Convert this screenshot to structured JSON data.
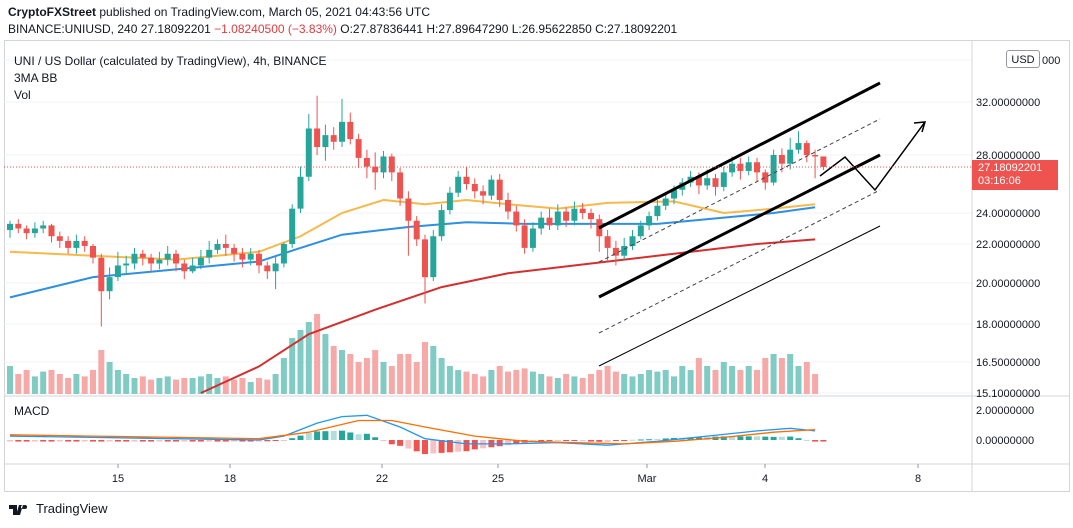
{
  "header": {
    "publisher": "CryptoFXStreet",
    "published_text": "published on TradingView.com, March 05, 2021 04:43:56 UTC",
    "symbol_line": "BINANCE:UNIUSD, 240",
    "last": "27.18092201",
    "change": "−1.08240500 (−3.83%)",
    "ohlc": "O:27.87836441 H:27.89647290 L:26.95622850 C:27.18092201"
  },
  "legend": {
    "title": "UNI / US Dollar (calculated by TradingView), 4h, BINANCE",
    "ind1": "3MA BB",
    "ind2": "Vol",
    "macd": "MACD"
  },
  "price_axis": {
    "currency": "USD",
    "current_price": "27.18092201",
    "countdown": "03:16:06",
    "ticks": [
      "36.00000000",
      "32.00000000",
      "28.00000000",
      "24.00000000",
      "22.00000000",
      "20.00000000",
      "18.00000000",
      "16.50000000",
      "15.10000000"
    ],
    "macd_ticks": [
      "2.00000000",
      "0.00000000"
    ]
  },
  "time_axis": [
    "15",
    "18",
    "22",
    "25",
    "Mar",
    "4",
    "8"
  ],
  "footer": {
    "brand": "TradingView"
  },
  "colors": {
    "up": "#26a69a",
    "down": "#ef5350",
    "ma_fast": "#f5b94c",
    "ma_mid": "#2f8fe0",
    "ma_slow": "#d32f2f",
    "macd": "#2196f3",
    "signal": "#ff6d00"
  },
  "chart_data": {
    "type": "candlestick",
    "interval": "4h",
    "price_range": [
      15.1,
      37.0
    ],
    "candles": [
      [
        22.9,
        23.3,
        23.5,
        22.4
      ],
      [
        23.3,
        23.0,
        23.6,
        22.7
      ],
      [
        23.0,
        22.7,
        23.2,
        22.3
      ],
      [
        22.7,
        23.0,
        23.4,
        22.4
      ],
      [
        23.0,
        23.2,
        23.5,
        22.7
      ],
      [
        23.2,
        22.5,
        23.3,
        22.1
      ],
      [
        22.5,
        22.2,
        22.8,
        21.8
      ],
      [
        22.2,
        21.8,
        22.5,
        21.5
      ],
      [
        21.8,
        22.2,
        22.6,
        21.5
      ],
      [
        22.2,
        21.9,
        22.5,
        21.6
      ],
      [
        21.9,
        21.3,
        22.0,
        21.0
      ],
      [
        21.3,
        19.6,
        21.5,
        17.9
      ],
      [
        19.6,
        20.3,
        20.8,
        19.2
      ],
      [
        20.3,
        20.9,
        21.6,
        20.1
      ],
      [
        20.9,
        21.0,
        21.4,
        20.5
      ],
      [
        21.0,
        21.5,
        21.8,
        20.7
      ],
      [
        21.5,
        21.3,
        21.7,
        20.9
      ],
      [
        21.3,
        21.0,
        21.5,
        20.6
      ],
      [
        21.0,
        21.2,
        21.6,
        20.7
      ],
      [
        21.2,
        21.5,
        21.9,
        20.9
      ],
      [
        21.5,
        21.0,
        21.7,
        20.6
      ],
      [
        21.0,
        20.6,
        21.2,
        20.2
      ],
      [
        20.6,
        20.9,
        21.3,
        20.5
      ],
      [
        20.9,
        21.3,
        21.7,
        20.7
      ],
      [
        21.3,
        21.7,
        22.2,
        21.0
      ],
      [
        21.7,
        22.0,
        22.3,
        21.5
      ],
      [
        22.0,
        21.8,
        22.6,
        21.4
      ],
      [
        21.8,
        21.5,
        22.0,
        21.1
      ],
      [
        21.5,
        21.2,
        21.8,
        20.8
      ],
      [
        21.2,
        21.5,
        21.8,
        20.9
      ],
      [
        21.5,
        20.9,
        21.7,
        20.5
      ],
      [
        20.9,
        20.6,
        21.1,
        20.2
      ],
      [
        20.6,
        21.0,
        21.4,
        19.7
      ],
      [
        21.0,
        22.0,
        22.1,
        20.8
      ],
      [
        22.0,
        24.3,
        24.6,
        21.8
      ],
      [
        24.3,
        26.5,
        27.2,
        24.0
      ],
      [
        26.5,
        30.0,
        31.1,
        26.2
      ],
      [
        30.0,
        28.6,
        32.6,
        28.0
      ],
      [
        28.6,
        29.5,
        30.3,
        27.6
      ],
      [
        29.5,
        29.0,
        30.1,
        28.4
      ],
      [
        29.0,
        30.5,
        32.3,
        28.6
      ],
      [
        30.5,
        29.2,
        31.2,
        28.8
      ],
      [
        29.2,
        27.8,
        29.6,
        27.1
      ],
      [
        27.8,
        27.2,
        28.4,
        26.4
      ],
      [
        27.2,
        26.8,
        28.2,
        25.6
      ],
      [
        26.8,
        27.9,
        28.3,
        26.4
      ],
      [
        27.9,
        26.8,
        28.1,
        26.2
      ],
      [
        26.8,
        25.0,
        27.1,
        24.5
      ],
      [
        25.0,
        23.5,
        25.5,
        21.4
      ],
      [
        23.5,
        22.3,
        23.8,
        21.9
      ],
      [
        22.3,
        20.3,
        22.6,
        19.0
      ],
      [
        20.3,
        22.5,
        22.9,
        20.1
      ],
      [
        22.5,
        24.2,
        24.6,
        22.2
      ],
      [
        24.2,
        25.4,
        25.8,
        23.9
      ],
      [
        25.4,
        26.5,
        26.9,
        25.1
      ],
      [
        26.5,
        26.0,
        27.2,
        25.6
      ],
      [
        26.0,
        25.5,
        26.4,
        25.0
      ],
      [
        25.5,
        25.2,
        25.9,
        24.6
      ],
      [
        25.2,
        26.3,
        26.6,
        24.9
      ],
      [
        26.3,
        24.9,
        26.7,
        24.4
      ],
      [
        24.9,
        24.1,
        25.4,
        23.6
      ],
      [
        24.1,
        23.2,
        24.5,
        22.8
      ],
      [
        23.2,
        21.8,
        23.6,
        21.5
      ],
      [
        21.8,
        23.0,
        23.4,
        21.6
      ],
      [
        23.0,
        23.7,
        24.1,
        22.6
      ],
      [
        23.7,
        23.2,
        24.3,
        22.9
      ],
      [
        23.2,
        24.1,
        24.6,
        22.9
      ],
      [
        24.1,
        23.5,
        24.4,
        23.1
      ],
      [
        23.5,
        24.3,
        24.8,
        23.2
      ],
      [
        24.3,
        24.0,
        24.7,
        23.6
      ],
      [
        24.0,
        23.6,
        24.3,
        23.0
      ],
      [
        23.6,
        22.5,
        23.9,
        21.6
      ],
      [
        22.5,
        21.8,
        22.9,
        21.1
      ],
      [
        21.8,
        21.4,
        22.2,
        20.9
      ],
      [
        21.4,
        21.9,
        22.4,
        21.2
      ],
      [
        21.9,
        22.5,
        22.9,
        21.7
      ],
      [
        22.5,
        23.2,
        23.5,
        22.3
      ],
      [
        23.2,
        23.8,
        24.1,
        22.9
      ],
      [
        23.8,
        24.5,
        24.9,
        23.5
      ],
      [
        24.5,
        25.0,
        25.4,
        24.2
      ],
      [
        25.0,
        25.6,
        25.9,
        24.6
      ],
      [
        25.6,
        26.1,
        26.4,
        25.2
      ],
      [
        26.1,
        26.5,
        26.9,
        25.8
      ],
      [
        26.5,
        25.9,
        26.8,
        25.3
      ],
      [
        25.9,
        26.4,
        27.0,
        25.6
      ],
      [
        26.4,
        25.8,
        26.7,
        25.2
      ],
      [
        25.8,
        26.8,
        27.2,
        25.5
      ],
      [
        26.8,
        27.4,
        27.9,
        26.5
      ],
      [
        27.4,
        26.9,
        27.8,
        26.3
      ],
      [
        26.9,
        27.5,
        27.9,
        26.6
      ],
      [
        27.5,
        26.8,
        27.8,
        26.2
      ],
      [
        26.8,
        26.1,
        27.0,
        25.6
      ],
      [
        26.1,
        28.0,
        28.4,
        25.9
      ],
      [
        28.0,
        27.4,
        28.5,
        26.8
      ],
      [
        27.4,
        28.4,
        29.3,
        27.0
      ],
      [
        28.4,
        28.9,
        29.8,
        28.1
      ],
      [
        28.9,
        28.0,
        29.1,
        27.5
      ],
      [
        28.0,
        27.9,
        28.4,
        26.4
      ],
      [
        27.9,
        27.18,
        27.9,
        26.96
      ]
    ],
    "volume_rel": [
      0.35,
      0.25,
      0.3,
      0.22,
      0.28,
      0.3,
      0.25,
      0.2,
      0.25,
      0.22,
      0.3,
      0.55,
      0.4,
      0.3,
      0.25,
      0.2,
      0.22,
      0.18,
      0.2,
      0.22,
      0.18,
      0.2,
      0.2,
      0.22,
      0.25,
      0.2,
      0.22,
      0.18,
      0.2,
      0.15,
      0.2,
      0.18,
      0.25,
      0.45,
      0.7,
      0.8,
      0.9,
      1.0,
      0.75,
      0.6,
      0.55,
      0.5,
      0.4,
      0.45,
      0.55,
      0.4,
      0.35,
      0.5,
      0.5,
      0.4,
      0.65,
      0.6,
      0.45,
      0.35,
      0.3,
      0.28,
      0.25,
      0.22,
      0.3,
      0.35,
      0.28,
      0.3,
      0.32,
      0.28,
      0.25,
      0.22,
      0.2,
      0.25,
      0.22,
      0.2,
      0.25,
      0.3,
      0.35,
      0.28,
      0.25,
      0.22,
      0.25,
      0.3,
      0.28,
      0.3,
      0.22,
      0.35,
      0.3,
      0.45,
      0.35,
      0.3,
      0.4,
      0.35,
      0.3,
      0.35,
      0.3,
      0.45,
      0.5,
      0.45,
      0.5,
      0.35,
      0.4,
      0.25
    ],
    "ma_fast": [
      [
        0,
        21.6
      ],
      [
        10,
        21.4
      ],
      [
        20,
        21.2
      ],
      [
        30,
        21.6
      ],
      [
        35,
        22.5
      ],
      [
        40,
        24.0
      ],
      [
        45,
        24.9
      ],
      [
        50,
        24.6
      ],
      [
        55,
        24.9
      ],
      [
        60,
        24.6
      ],
      [
        66,
        24.3
      ],
      [
        72,
        24.7
      ],
      [
        80,
        24.8
      ],
      [
        86,
        24.0
      ],
      [
        92,
        24.3
      ],
      [
        97,
        24.6
      ]
    ],
    "ma_mid": [
      [
        0,
        19.3
      ],
      [
        10,
        20.3
      ],
      [
        20,
        20.7
      ],
      [
        30,
        21.1
      ],
      [
        35,
        21.8
      ],
      [
        40,
        22.6
      ],
      [
        48,
        23.1
      ],
      [
        55,
        23.4
      ],
      [
        62,
        23.3
      ],
      [
        70,
        23.3
      ],
      [
        78,
        23.3
      ],
      [
        86,
        23.7
      ],
      [
        92,
        24.0
      ],
      [
        97,
        24.4
      ]
    ],
    "ma_slow": [
      [
        23,
        15.1
      ],
      [
        30,
        16.3
      ],
      [
        36,
        17.6
      ],
      [
        44,
        18.7
      ],
      [
        52,
        19.8
      ],
      [
        60,
        20.5
      ],
      [
        70,
        21.0
      ],
      [
        80,
        21.5
      ],
      [
        90,
        22.0
      ],
      [
        97,
        22.3
      ]
    ],
    "macd_line": [
      [
        0,
        0.3
      ],
      [
        10,
        0.2
      ],
      [
        20,
        0.1
      ],
      [
        30,
        0.0
      ],
      [
        33,
        0.3
      ],
      [
        37,
        1.3
      ],
      [
        40,
        1.8
      ],
      [
        43,
        1.9
      ],
      [
        47,
        1.0
      ],
      [
        50,
        0.1
      ],
      [
        55,
        -0.3
      ],
      [
        60,
        -0.3
      ],
      [
        66,
        -0.2
      ],
      [
        72,
        -0.4
      ],
      [
        78,
        -0.1
      ],
      [
        84,
        0.3
      ],
      [
        90,
        0.7
      ],
      [
        94,
        0.9
      ],
      [
        97,
        0.7
      ]
    ],
    "signal_line": [
      [
        0,
        0.4
      ],
      [
        10,
        0.3
      ],
      [
        20,
        0.2
      ],
      [
        30,
        0.1
      ],
      [
        36,
        0.6
      ],
      [
        42,
        1.5
      ],
      [
        46,
        1.5
      ],
      [
        50,
        1.0
      ],
      [
        56,
        0.3
      ],
      [
        62,
        -0.1
      ],
      [
        68,
        -0.2
      ],
      [
        74,
        -0.3
      ],
      [
        80,
        -0.1
      ],
      [
        86,
        0.2
      ],
      [
        92,
        0.6
      ],
      [
        97,
        0.8
      ]
    ],
    "macd_range": [
      -0.8,
      2.4
    ]
  }
}
